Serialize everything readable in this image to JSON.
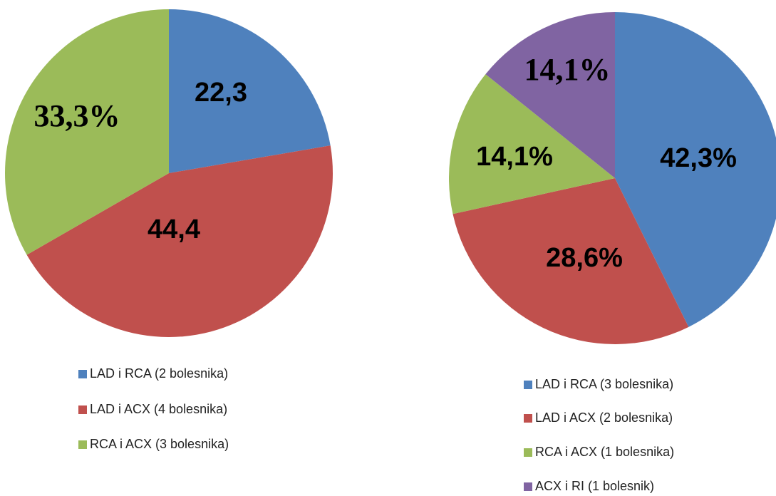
{
  "chart_data": [
    {
      "type": "pie",
      "categories": [
        "LAD i RCA (2 bolesnika)",
        "LAD i ACX (4 bolesnika)",
        "RCA i ACX (3 bolesnika)"
      ],
      "values": [
        22.3,
        44.4,
        33.3
      ],
      "value_labels": [
        "22,3",
        "44,4",
        "33,3%"
      ],
      "colors": [
        "#4f81bd",
        "#c0504d",
        "#9bbb59"
      ]
    },
    {
      "type": "pie",
      "categories": [
        "LAD i RCA (3 bolesnika)",
        "LAD i ACX (2 bolesnika)",
        "RCA i ACX (1 bolesnika)",
        "ACX i RI (1 bolesnik)"
      ],
      "values": [
        42.3,
        28.6,
        14.1,
        14.1
      ],
      "value_labels": [
        "42,3%",
        "28,6%",
        "14,1%",
        "14,1%"
      ],
      "colors": [
        "#4f81bd",
        "#c0504d",
        "#9bbb59",
        "#8064a2"
      ]
    }
  ]
}
